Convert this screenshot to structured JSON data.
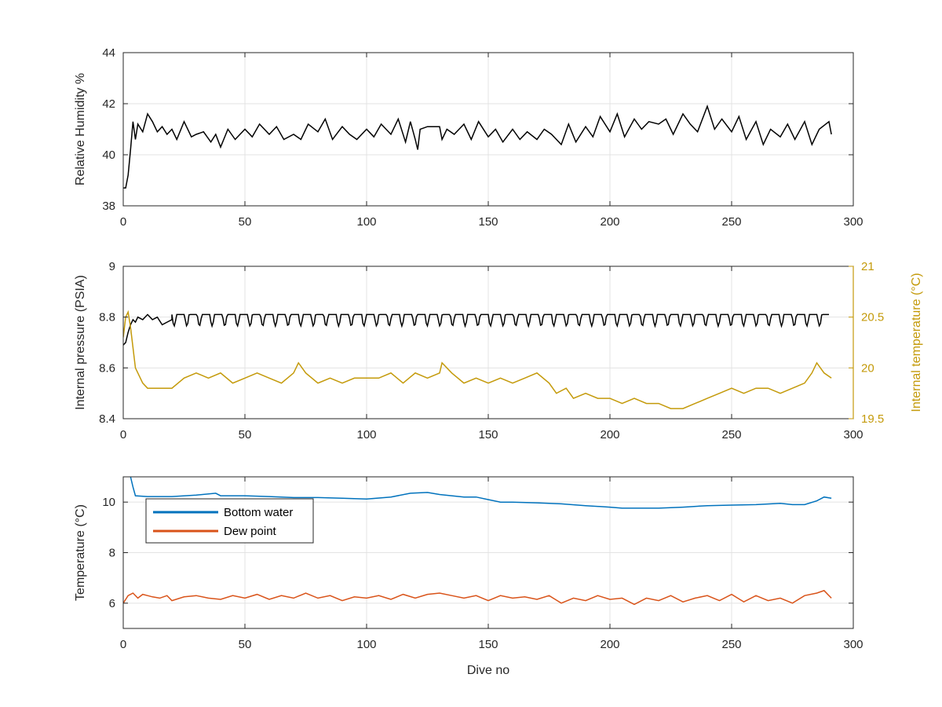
{
  "chart_data": [
    {
      "type": "line",
      "xlim": [
        0,
        300
      ],
      "ylim": [
        38,
        44
      ],
      "xticks": [
        "0",
        "50",
        "100",
        "150",
        "200",
        "250",
        "300"
      ],
      "yticks": [
        "38",
        "40",
        "42",
        "44"
      ],
      "xtick_values": [
        0,
        50,
        100,
        150,
        200,
        250,
        300
      ],
      "ytick_values": [
        38,
        40,
        42,
        44
      ],
      "xlabel": "",
      "ylabel": "Relative Humidity %",
      "grid": true,
      "series": [
        {
          "color": "#000000",
          "x": [
            0,
            1,
            2,
            3,
            4,
            5,
            6,
            8,
            10,
            12,
            14,
            16,
            18,
            20,
            22,
            25,
            28,
            30,
            33,
            36,
            38,
            40,
            43,
            46,
            50,
            53,
            56,
            60,
            63,
            66,
            70,
            73,
            76,
            80,
            83,
            86,
            90,
            93,
            96,
            100,
            103,
            106,
            110,
            113,
            116,
            118,
            120,
            121,
            122,
            125,
            128,
            130,
            131,
            133,
            136,
            140,
            143,
            146,
            150,
            153,
            156,
            160,
            163,
            166,
            170,
            173,
            176,
            180,
            183,
            186,
            190,
            193,
            196,
            200,
            203,
            206,
            210,
            213,
            216,
            220,
            223,
            226,
            230,
            233,
            236,
            240,
            243,
            246,
            250,
            253,
            256,
            260,
            263,
            266,
            270,
            273,
            276,
            280,
            283,
            286,
            290,
            291
          ],
          "values": [
            38.7,
            38.7,
            39.2,
            40.2,
            41.3,
            40.6,
            41.2,
            40.9,
            41.6,
            41.3,
            40.9,
            41.1,
            40.8,
            41.0,
            40.6,
            41.3,
            40.7,
            40.8,
            40.9,
            40.5,
            40.8,
            40.3,
            41.0,
            40.6,
            41.0,
            40.7,
            41.2,
            40.8,
            41.1,
            40.6,
            40.8,
            40.6,
            41.2,
            40.9,
            41.4,
            40.6,
            41.1,
            40.8,
            40.6,
            41.0,
            40.7,
            41.2,
            40.8,
            41.4,
            40.5,
            41.3,
            40.6,
            40.2,
            41.0,
            41.1,
            41.1,
            41.1,
            40.6,
            41.0,
            40.8,
            41.2,
            40.6,
            41.3,
            40.7,
            41.0,
            40.5,
            41.0,
            40.6,
            40.9,
            40.6,
            41.0,
            40.8,
            40.4,
            41.2,
            40.5,
            41.1,
            40.7,
            41.5,
            40.9,
            41.6,
            40.7,
            41.4,
            41.0,
            41.3,
            41.2,
            41.4,
            40.8,
            41.6,
            41.2,
            40.9,
            41.9,
            41.0,
            41.4,
            40.9,
            41.5,
            40.6,
            41.3,
            40.4,
            41.0,
            40.7,
            41.2,
            40.6,
            41.3,
            40.4,
            41.0,
            41.3,
            40.8
          ]
        }
      ]
    },
    {
      "type": "line",
      "xlim": [
        0,
        300
      ],
      "ylim": [
        8.4,
        9
      ],
      "y2lim": [
        19.5,
        21
      ],
      "xticks": [
        "0",
        "50",
        "100",
        "150",
        "200",
        "250",
        "300"
      ],
      "yticks": [
        "8.4",
        "8.6",
        "8.8",
        "9"
      ],
      "y2ticks": [
        "19.5",
        "20",
        "20.5",
        "21"
      ],
      "xtick_values": [
        0,
        50,
        100,
        150,
        200,
        250,
        300
      ],
      "ytick_values": [
        8.4,
        8.6,
        8.8,
        9.0
      ],
      "y2tick_values": [
        19.5,
        20.0,
        20.5,
        21.0
      ],
      "xlabel": "",
      "ylabel": "Internal pressure (PSIA)",
      "y2label": "Internal temperature (°C)",
      "y2color": "#C49A0A",
      "grid": true,
      "series": [
        {
          "axis": "left",
          "color": "#000000",
          "x": [
            0,
            1,
            2,
            3,
            4,
            5,
            6,
            8,
            10,
            12,
            14,
            16,
            18,
            20,
            290
          ],
          "values": [
            8.69,
            8.7,
            8.74,
            8.77,
            8.79,
            8.78,
            8.8,
            8.79,
            8.81,
            8.79,
            8.8,
            8.77,
            8.78,
            8.79,
            8.8
          ],
          "sawtooth": {
            "period": 5.2,
            "base": 8.8,
            "amplitude": 0.045
          }
        },
        {
          "axis": "right",
          "color": "#C49A0A",
          "x": [
            0,
            1,
            2,
            3,
            4,
            5,
            8,
            10,
            15,
            20,
            25,
            30,
            35,
            40,
            45,
            50,
            55,
            60,
            65,
            70,
            72,
            75,
            80,
            85,
            90,
            95,
            100,
            105,
            110,
            115,
            120,
            125,
            130,
            131,
            135,
            140,
            145,
            150,
            155,
            160,
            165,
            170,
            175,
            178,
            182,
            185,
            190,
            195,
            200,
            205,
            210,
            215,
            220,
            225,
            230,
            235,
            240,
            245,
            250,
            255,
            260,
            265,
            270,
            275,
            280,
            283,
            285,
            288,
            291
          ],
          "values": [
            20.3,
            20.5,
            20.55,
            20.4,
            20.2,
            20.0,
            19.85,
            19.8,
            19.8,
            19.8,
            19.9,
            19.95,
            19.9,
            19.95,
            19.85,
            19.9,
            19.95,
            19.9,
            19.85,
            19.95,
            20.05,
            19.95,
            19.85,
            19.9,
            19.85,
            19.9,
            19.9,
            19.9,
            19.95,
            19.85,
            19.95,
            19.9,
            19.95,
            20.05,
            19.95,
            19.85,
            19.9,
            19.85,
            19.9,
            19.85,
            19.9,
            19.95,
            19.85,
            19.75,
            19.8,
            19.7,
            19.75,
            19.7,
            19.7,
            19.65,
            19.7,
            19.65,
            19.65,
            19.6,
            19.6,
            19.65,
            19.7,
            19.75,
            19.8,
            19.75,
            19.8,
            19.8,
            19.75,
            19.8,
            19.85,
            19.95,
            20.05,
            19.95,
            19.9
          ]
        }
      ]
    },
    {
      "type": "line",
      "xlim": [
        0,
        300
      ],
      "ylim": [
        5,
        11
      ],
      "xticks": [
        "0",
        "50",
        "100",
        "150",
        "200",
        "250",
        "300"
      ],
      "yticks": [
        "6",
        "8",
        "10"
      ],
      "xtick_values": [
        0,
        50,
        100,
        150,
        200,
        250,
        300
      ],
      "ytick_values": [
        6,
        8,
        10
      ],
      "xlabel": "Dive no",
      "ylabel": "Temperature (°C)",
      "grid": true,
      "legend": "top-left",
      "series": [
        {
          "name": "Bottom water",
          "color": "#0072BD",
          "x": [
            3,
            4,
            5,
            10,
            20,
            30,
            38,
            40,
            50,
            60,
            70,
            80,
            90,
            100,
            110,
            118,
            125,
            130,
            140,
            145,
            150,
            155,
            160,
            170,
            180,
            190,
            200,
            205,
            210,
            220,
            230,
            240,
            250,
            260,
            270,
            275,
            280,
            285,
            288,
            291
          ],
          "values": [
            11.0,
            10.6,
            10.25,
            10.22,
            10.22,
            10.28,
            10.35,
            10.25,
            10.25,
            10.22,
            10.18,
            10.18,
            10.15,
            10.12,
            10.2,
            10.35,
            10.38,
            10.3,
            10.2,
            10.2,
            10.1,
            10.0,
            10.0,
            9.97,
            9.93,
            9.86,
            9.8,
            9.76,
            9.76,
            9.76,
            9.8,
            9.86,
            9.88,
            9.9,
            9.95,
            9.9,
            9.9,
            10.05,
            10.2,
            10.15
          ]
        },
        {
          "name": "Dew point",
          "color": "#D95319",
          "x": [
            0,
            2,
            4,
            6,
            8,
            10,
            12,
            15,
            18,
            20,
            25,
            30,
            35,
            40,
            45,
            50,
            55,
            60,
            65,
            70,
            75,
            80,
            85,
            90,
            95,
            100,
            105,
            110,
            115,
            120,
            125,
            130,
            135,
            140,
            145,
            150,
            155,
            160,
            165,
            170,
            175,
            180,
            185,
            190,
            195,
            200,
            205,
            210,
            215,
            220,
            225,
            230,
            235,
            240,
            245,
            250,
            255,
            260,
            265,
            270,
            275,
            280,
            285,
            288,
            291
          ],
          "values": [
            6.0,
            6.3,
            6.4,
            6.2,
            6.35,
            6.3,
            6.25,
            6.2,
            6.3,
            6.1,
            6.25,
            6.3,
            6.2,
            6.15,
            6.3,
            6.2,
            6.35,
            6.15,
            6.3,
            6.2,
            6.4,
            6.2,
            6.3,
            6.1,
            6.25,
            6.2,
            6.3,
            6.15,
            6.35,
            6.2,
            6.35,
            6.4,
            6.3,
            6.2,
            6.3,
            6.1,
            6.3,
            6.2,
            6.25,
            6.15,
            6.3,
            6.0,
            6.2,
            6.1,
            6.3,
            6.15,
            6.2,
            5.95,
            6.2,
            6.1,
            6.3,
            6.05,
            6.2,
            6.3,
            6.1,
            6.35,
            6.05,
            6.3,
            6.1,
            6.2,
            6.0,
            6.3,
            6.4,
            6.5,
            6.2
          ]
        }
      ]
    }
  ]
}
